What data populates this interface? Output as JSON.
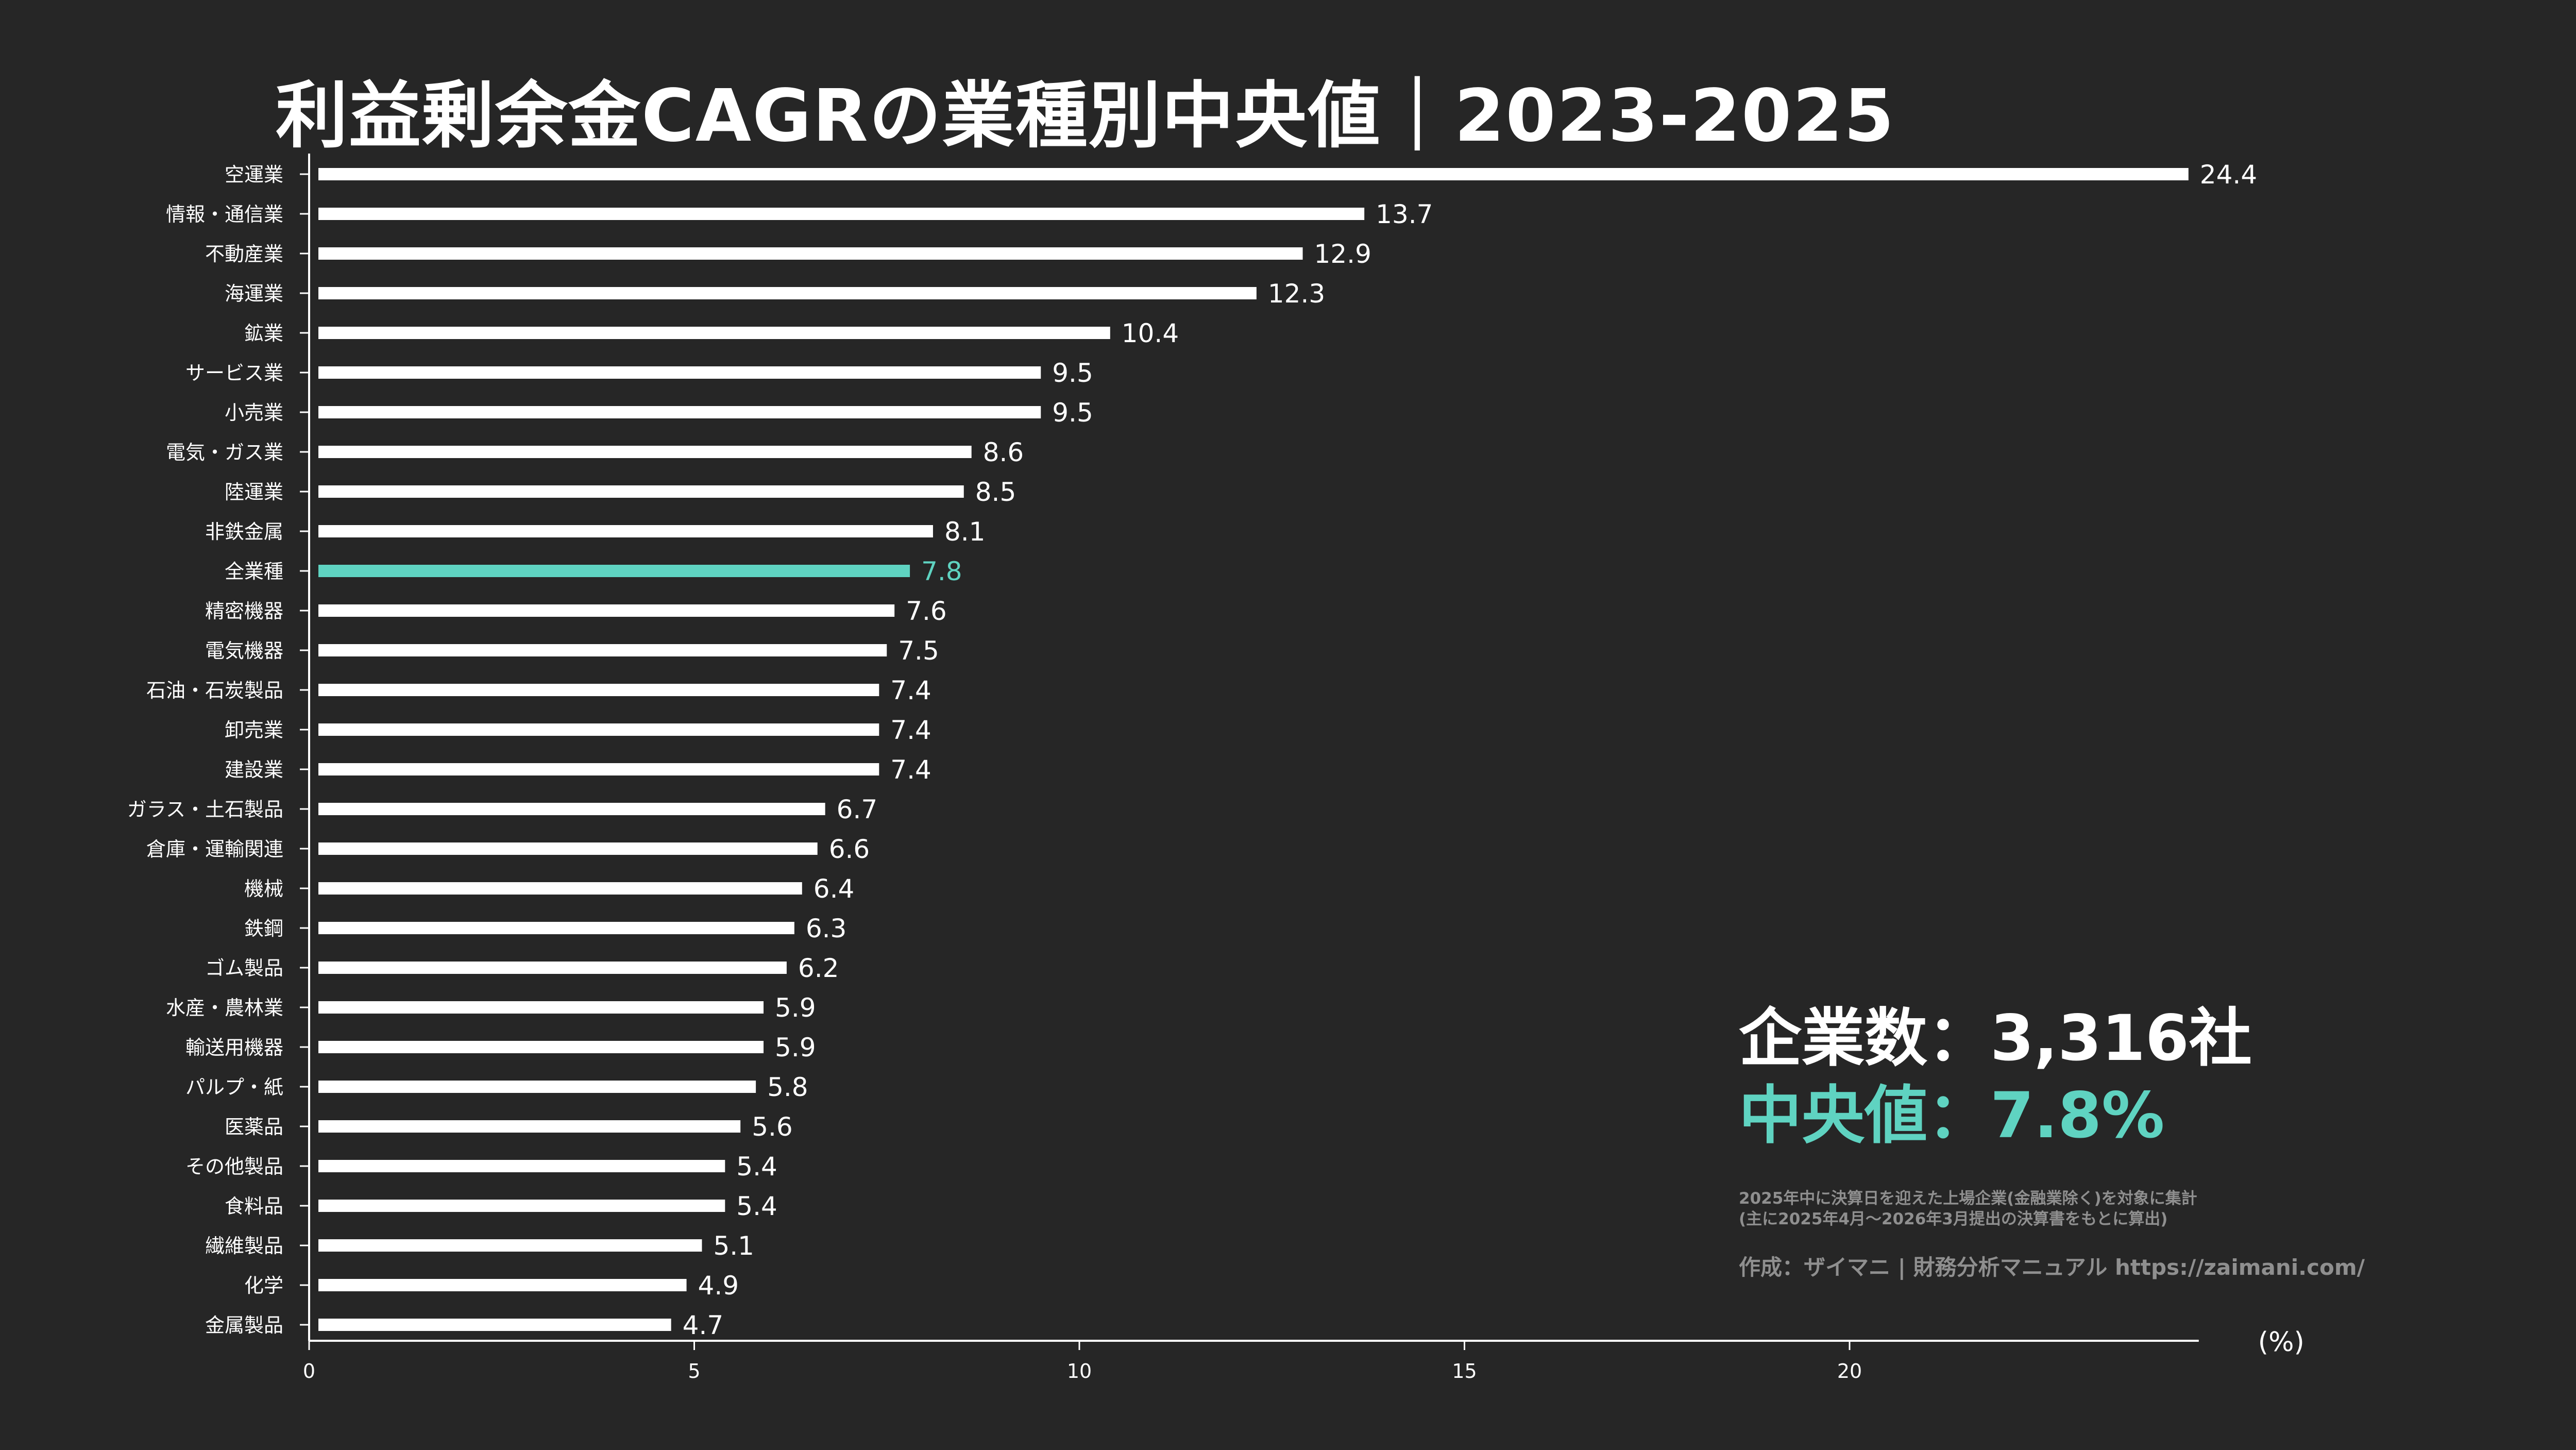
{
  "title": "利益剰余金CAGRの業種別中央値｜2023-2025",
  "info": {
    "company_count": "企業数：3,316社",
    "median": "中央値：7.8%",
    "note_line1": "2025年中に決算日を迎えた上場企業(金融業除く)を対象に集計",
    "note_line2": "(主に2025年4月～2026年3月提出の決算書をもとに算出)",
    "credit": "作成：ザイマニ | 財務分析マニュアル https://zaimani.com/"
  },
  "colors": {
    "background": "#262626",
    "bar": "#ffffff",
    "highlight": "#5fd3c1",
    "note": "#8f8f8f"
  },
  "chart_data": {
    "type": "bar",
    "orientation": "horizontal",
    "unit_label": "(%)",
    "xlim": [
      0,
      24.4
    ],
    "xticks": [
      0,
      5,
      10,
      15,
      20
    ],
    "highlight_category": "全業種",
    "categories": [
      "空運業",
      "情報・通信業",
      "不動産業",
      "海運業",
      "鉱業",
      "サービス業",
      "小売業",
      "電気・ガス業",
      "陸運業",
      "非鉄金属",
      "全業種",
      "精密機器",
      "電気機器",
      "石油・石炭製品",
      "卸売業",
      "建設業",
      "ガラス・土石製品",
      "倉庫・運輸関連",
      "機械",
      "鉄鋼",
      "ゴム製品",
      "水産・農林業",
      "輸送用機器",
      "パルプ・紙",
      "医薬品",
      "その他製品",
      "食料品",
      "繊維製品",
      "化学",
      "金属製品"
    ],
    "values": [
      24.4,
      13.7,
      12.9,
      12.3,
      10.4,
      9.5,
      9.5,
      8.6,
      8.5,
      8.1,
      7.8,
      7.6,
      7.5,
      7.4,
      7.4,
      7.4,
      6.7,
      6.6,
      6.4,
      6.3,
      6.2,
      5.9,
      5.9,
      5.8,
      5.6,
      5.4,
      5.4,
      5.1,
      4.9,
      4.7
    ],
    "value_labels": [
      "24.4",
      "13.7",
      "12.9",
      "12.3",
      "10.4",
      "9.5",
      "9.5",
      "8.6",
      "8.5",
      "8.1",
      "7.8",
      "7.6",
      "7.5",
      "7.4",
      "7.4",
      "7.4",
      "6.7",
      "6.6",
      "6.4",
      "6.3",
      "6.2",
      "5.9",
      "5.9",
      "5.8",
      "5.6",
      "5.4",
      "5.4",
      "5.1",
      "4.9",
      "4.7"
    ]
  }
}
